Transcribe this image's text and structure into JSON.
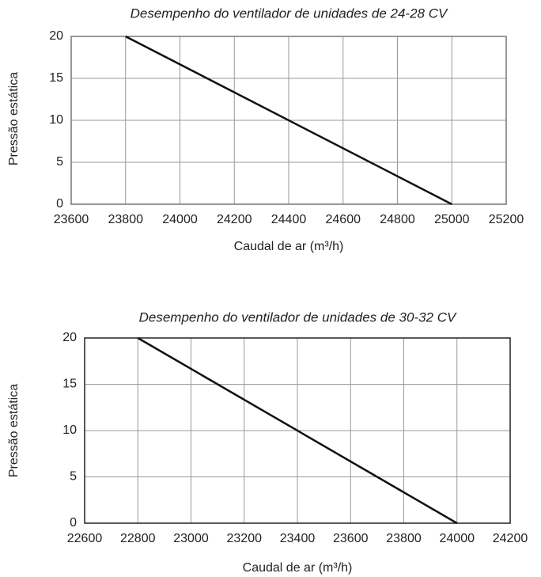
{
  "chart_data": [
    {
      "type": "line",
      "title": "Desempenho do ventilador de unidades de 24-28 CV",
      "x_label": "Caudal de ar (m³/h)",
      "y_label": "Pressão estática",
      "x": [
        23800,
        25000
      ],
      "values": [
        20,
        0
      ],
      "color": "#111111",
      "xlim": [
        23600,
        25200
      ],
      "xticks": [
        23600,
        23800,
        24000,
        24200,
        24400,
        24600,
        24800,
        25000,
        25200
      ],
      "ylim": [
        0,
        20
      ],
      "yticks": [
        0,
        5,
        10,
        15,
        20
      ],
      "grid": true
    },
    {
      "type": "line",
      "title": "Desempenho do ventilador de unidades de 30-32 CV",
      "x_label": "Caudal de ar (m³/h)",
      "y_label": "Pressão estática",
      "x": [
        22800,
        24000
      ],
      "values": [
        20,
        0
      ],
      "color": "#111111",
      "xlim": [
        22600,
        24200
      ],
      "xticks": [
        22600,
        22800,
        23000,
        23200,
        23400,
        23600,
        23800,
        24000,
        24200
      ],
      "ylim": [
        0,
        20
      ],
      "yticks": [
        0,
        5,
        10,
        15,
        20
      ],
      "grid": true
    }
  ]
}
